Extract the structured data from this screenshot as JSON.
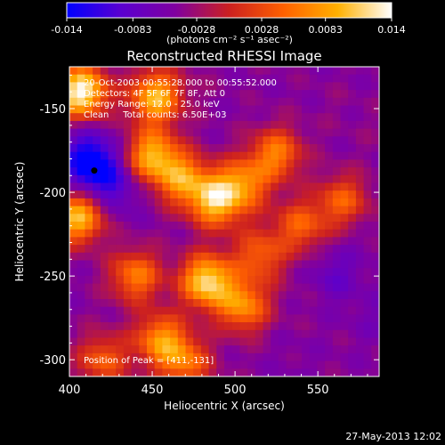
{
  "chart_data": {
    "type": "heatmap",
    "title": "Reconstructed RHESSI Image",
    "xlabel": "Heliocentric X (arcsec)",
    "ylabel": "Heliocentric Y (arcsec)",
    "xlim": [
      400,
      587
    ],
    "ylim": [
      -310,
      -125
    ],
    "x_ticks": [
      "400",
      "450",
      "500",
      "550"
    ],
    "x_tick_values": [
      400,
      450,
      500,
      550
    ],
    "y_ticks": [
      "-150",
      "-200",
      "-250",
      "-300"
    ],
    "y_tick_values": [
      -150,
      -200,
      -250,
      -300
    ],
    "colorbar": {
      "range": [
        -0.014,
        0.014
      ],
      "ticks": [
        "-0.014",
        "-0.0083",
        "-0.0028",
        "0.0028",
        "0.0083",
        "0.014"
      ],
      "tick_values": [
        -0.014,
        -0.0083,
        -0.0028,
        0.0028,
        0.0083,
        0.014
      ],
      "unit_label": "(photons cm⁻² s⁻¹ asec⁻²)",
      "colors": [
        "#0000ff",
        "#5a00d0",
        "#8000a0",
        "#cc2020",
        "#ff6000",
        "#ffb000",
        "#ffffff"
      ]
    },
    "annotations": [
      "20-Oct-2003 00:55:28.000 to 00:55:52.000",
      "Detectors: 4F 5F 6F 7F 8F, Att 0",
      "Energy Range: 12.0 - 25.0 keV",
      "Clean     Total counts: 6.50E+03"
    ],
    "peak_label": "Position of Peak = [411,-131]",
    "peak_position": [
      411,
      -131
    ],
    "minimum_marker": [
      415,
      -187
    ],
    "features": [
      {
        "x": 407,
        "y": -140,
        "value": 0.014
      },
      {
        "x": 452,
        "y": -143,
        "value": 0.01
      },
      {
        "x": 405,
        "y": -215,
        "value": 0.01
      },
      {
        "x": 450,
        "y": -178,
        "value": 0.009
      },
      {
        "x": 468,
        "y": -192,
        "value": 0.007
      },
      {
        "x": 488,
        "y": -205,
        "value": 0.01
      },
      {
        "x": 505,
        "y": -195,
        "value": 0.006
      },
      {
        "x": 525,
        "y": -177,
        "value": 0.006
      },
      {
        "x": 483,
        "y": -253,
        "value": 0.012
      },
      {
        "x": 440,
        "y": -250,
        "value": 0.006
      },
      {
        "x": 455,
        "y": -288,
        "value": 0.007
      },
      {
        "x": 505,
        "y": -268,
        "value": 0.007
      },
      {
        "x": 470,
        "y": -302,
        "value": 0.005
      },
      {
        "x": 540,
        "y": -220,
        "value": 0.004
      },
      {
        "x": 565,
        "y": -205,
        "value": 0.004
      },
      {
        "x": 515,
        "y": -238,
        "value": 0.004
      },
      {
        "x": 420,
        "y": -300,
        "value": 0.004
      },
      {
        "x": 415,
        "y": -187,
        "value": -0.014
      },
      {
        "x": 410,
        "y": -175,
        "value": -0.009
      },
      {
        "x": 430,
        "y": -200,
        "value": -0.008
      },
      {
        "x": 478,
        "y": -133,
        "value": -0.004
      },
      {
        "x": 560,
        "y": -150,
        "value": -0.004
      },
      {
        "x": 585,
        "y": -165,
        "value": -0.004
      },
      {
        "x": 560,
        "y": -250,
        "value": -0.008
      },
      {
        "x": 575,
        "y": -228,
        "value": -0.005
      },
      {
        "x": 585,
        "y": -275,
        "value": -0.006
      },
      {
        "x": 535,
        "y": -300,
        "value": -0.005
      },
      {
        "x": 545,
        "y": -260,
        "value": -0.004
      },
      {
        "x": 520,
        "y": -215,
        "value": -0.004
      },
      {
        "x": 500,
        "y": -225,
        "value": -0.004
      }
    ]
  },
  "footer": {
    "timestamp": "27-May-2013 12:02"
  }
}
